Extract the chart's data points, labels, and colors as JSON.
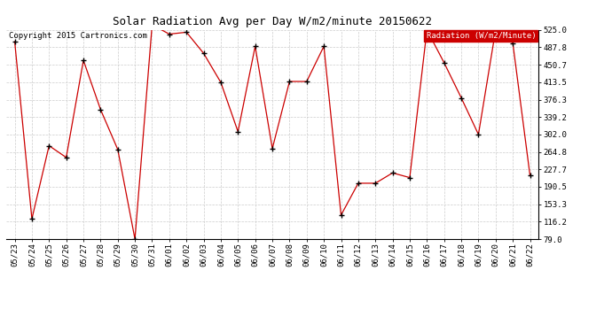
{
  "title": "Solar Radiation Avg per Day W/m2/minute 20150622",
  "copyright": "Copyright 2015 Cartronics.com",
  "legend_label": "Radiation (W/m2/Minute)",
  "dates": [
    "05/23",
    "05/24",
    "05/25",
    "05/26",
    "05/27",
    "05/28",
    "05/29",
    "05/30",
    "05/31",
    "06/01",
    "06/02",
    "06/03",
    "06/04",
    "06/05",
    "06/06",
    "06/07",
    "06/08",
    "06/09",
    "06/10",
    "06/11",
    "06/12",
    "06/13",
    "06/14",
    "06/15",
    "06/16",
    "06/17",
    "06/18",
    "06/19",
    "06/20",
    "06/21",
    "06/22"
  ],
  "values": [
    500.0,
    122.0,
    278.0,
    253.0,
    460.0,
    355.0,
    270.0,
    79.0,
    536.0,
    516.0,
    520.0,
    475.0,
    413.0,
    308.0,
    490.0,
    272.0,
    415.0,
    415.0,
    490.0,
    130.0,
    198.0,
    198.0,
    220.0,
    210.0,
    525.0,
    455.0,
    380.0,
    302.0,
    525.0,
    497.0,
    215.0
  ],
  "ylim_min": 79.0,
  "ylim_max": 525.0,
  "ytick_values": [
    79.0,
    116.2,
    153.3,
    190.5,
    227.7,
    264.8,
    302.0,
    339.2,
    376.3,
    413.5,
    450.7,
    487.8,
    525.0
  ],
  "ytick_labels": [
    "79.0",
    "116.2",
    "153.3",
    "190.5",
    "227.7",
    "264.8",
    "302.0",
    "339.2",
    "376.3",
    "413.5",
    "450.7",
    "487.8",
    "525.0"
  ],
  "line_color": "#cc0000",
  "marker_color": "#000000",
  "bg_color": "#ffffff",
  "grid_color": "#cccccc",
  "title_fontsize": 9,
  "copyright_fontsize": 6.5,
  "tick_fontsize": 6.5,
  "legend_bg": "#cc0000",
  "legend_text_color": "#ffffff",
  "legend_fontsize": 6.5
}
